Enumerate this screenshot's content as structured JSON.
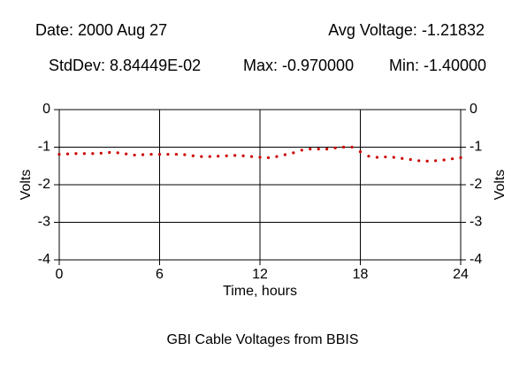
{
  "chart_data": {
    "type": "scatter",
    "title": "GBI Cable Voltages from BBIS",
    "annotations": [
      "Date: 2000 Aug 27",
      "Avg Voltage: -1.21832",
      "StdDev: 8.84449E-02",
      "Max: -0.970000",
      "Min: -1.40000"
    ],
    "x_label": "Time, hours",
    "y_label": "Volts",
    "y2_label": "Volts",
    "xlim": [
      0,
      24
    ],
    "xticks": [
      0,
      6,
      12,
      18,
      24
    ],
    "ylim": [
      -4,
      0
    ],
    "yticks": [
      0,
      -1,
      -2,
      -3,
      -4
    ],
    "y2lim": [
      -4,
      0
    ],
    "y2ticks": [
      0,
      -1,
      -2,
      -3,
      -4
    ],
    "grid": true,
    "series": [
      {
        "color": "#cc0000",
        "x": [
          0,
          0.5,
          1,
          1.5,
          2,
          2.5,
          3,
          3.5,
          4,
          4.5,
          5,
          5.5,
          6,
          6.5,
          7,
          7.5,
          8,
          8.5,
          9,
          9.5,
          10,
          10.5,
          11,
          11.5,
          12,
          12.5,
          13,
          13.5,
          14,
          14.5,
          15,
          15.5,
          16,
          16.5,
          17,
          17.5,
          18,
          18.5,
          19,
          19.5,
          20,
          20.5,
          21,
          21.5,
          22,
          22.5,
          23,
          23.5,
          24
        ],
        "values": [
          -1.19,
          -1.18,
          -1.17,
          -1.17,
          -1.17,
          -1.16,
          -1.14,
          -1.15,
          -1.18,
          -1.21,
          -1.2,
          -1.19,
          -1.19,
          -1.19,
          -1.19,
          -1.2,
          -1.23,
          -1.25,
          -1.25,
          -1.24,
          -1.23,
          -1.22,
          -1.23,
          -1.25,
          -1.27,
          -1.28,
          -1.25,
          -1.2,
          -1.15,
          -1.08,
          -1.05,
          -1.05,
          -1.05,
          -1.02,
          -1.0,
          -1.0,
          -1.12,
          -1.24,
          -1.27,
          -1.26,
          -1.27,
          -1.3,
          -1.33,
          -1.36,
          -1.37,
          -1.36,
          -1.34,
          -1.31,
          -1.28
        ]
      }
    ]
  }
}
